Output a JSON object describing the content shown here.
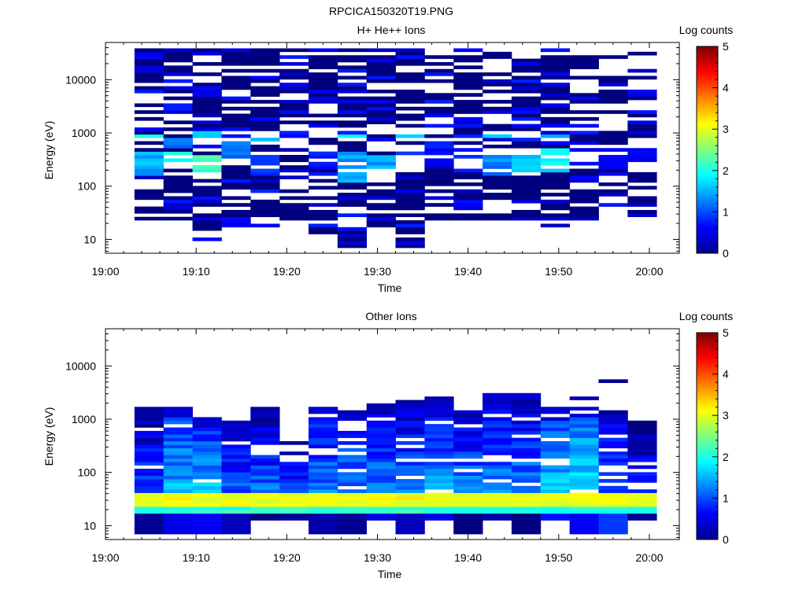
{
  "figure_title": "RPCICA150320T19.PNG",
  "chart_data": [
    {
      "type": "heatmap",
      "title": "H+ He++ Ions",
      "xlabel": "Time",
      "ylabel": "Energy (eV)",
      "x_tick_labels": [
        "19:00",
        "19:10",
        "19:20",
        "19:30",
        "19:40",
        "19:50",
        "20:00"
      ],
      "x_ticks_minutes": [
        0,
        10,
        20,
        30,
        40,
        50,
        60
      ],
      "xlim_minutes": [
        0,
        63.3
      ],
      "y_scale": "log",
      "ylim": [
        5.5,
        50000
      ],
      "y_tick_labels": [
        "10",
        "100",
        "1000",
        "10000"
      ],
      "y_ticks": [
        10,
        100,
        1000,
        10000
      ],
      "colorbar": {
        "label": "Log counts",
        "range": [
          0,
          5
        ],
        "tick_labels": [
          "0",
          "1",
          "2",
          "3",
          "4",
          "5"
        ]
      },
      "time_bins_minutes": [
        [
          3.2,
          6.4
        ],
        [
          6.4,
          9.6
        ],
        [
          9.6,
          12.8
        ],
        [
          12.8,
          16.0
        ],
        [
          16.0,
          19.2
        ],
        [
          19.2,
          22.4
        ],
        [
          22.4,
          25.6
        ],
        [
          25.6,
          28.8
        ],
        [
          28.8,
          32.0
        ],
        [
          32.0,
          35.2
        ],
        [
          35.2,
          38.4
        ],
        [
          38.4,
          41.6
        ],
        [
          41.6,
          44.8
        ],
        [
          44.8,
          48.0
        ],
        [
          48.0,
          51.2
        ],
        [
          51.2,
          54.4
        ],
        [
          54.4,
          57.6
        ],
        [
          57.6,
          60.8
        ]
      ],
      "columns": [
        {
          "emin": 22,
          "emax": 40000,
          "fill": 0.72,
          "seed": 1,
          "hot": [
            [
              150,
              450,
              1.7
            ],
            [
              700,
              1000,
              2.6
            ],
            [
              40,
              60,
              0.3
            ]
          ]
        },
        {
          "emin": 22,
          "emax": 40000,
          "fill": 0.7,
          "seed": 2,
          "hot": [
            [
              200,
              450,
              2.3
            ],
            [
              500,
              800,
              1.5
            ]
          ]
        },
        {
          "emin": 10,
          "emax": 40000,
          "fill": 0.7,
          "seed": 3,
          "hot": [
            [
              180,
              400,
              2.7
            ],
            [
              800,
              1100,
              2.2
            ]
          ]
        },
        {
          "emin": 18,
          "emax": 40000,
          "fill": 0.68,
          "seed": 4,
          "hot": [
            [
              300,
              700,
              1.3
            ]
          ]
        },
        {
          "emin": 18,
          "emax": 40000,
          "fill": 0.7,
          "seed": 5,
          "hot": [
            [
              150,
              400,
              1.1
            ],
            [
              700,
              1000,
              1.6
            ]
          ]
        },
        {
          "emin": 22,
          "emax": 40000,
          "fill": 0.65,
          "seed": 6,
          "hot": [
            [
              500,
              900,
              0.8
            ]
          ]
        },
        {
          "emin": 12,
          "emax": 40000,
          "fill": 0.66,
          "seed": 7,
          "hot": [
            [
              200,
              600,
              0.9
            ]
          ]
        },
        {
          "emin": 7,
          "emax": 40000,
          "fill": 0.7,
          "seed": 8,
          "hot": [
            [
              120,
              450,
              1.6
            ],
            [
              700,
              1000,
              1.9
            ]
          ]
        },
        {
          "emin": 18,
          "emax": 40000,
          "fill": 0.7,
          "seed": 9,
          "hot": [
            [
              150,
              400,
              1.8
            ]
          ]
        },
        {
          "emin": 7,
          "emax": 40000,
          "fill": 0.66,
          "seed": 10,
          "hot": [
            [
              200,
              600,
              1.2
            ],
            [
              800,
              1000,
              1.8
            ]
          ]
        },
        {
          "emin": 22,
          "emax": 40000,
          "fill": 0.62,
          "seed": 11,
          "hot": [
            [
              300,
              700,
              0.8
            ]
          ]
        },
        {
          "emin": 22,
          "emax": 40000,
          "fill": 0.62,
          "seed": 12,
          "hot": [
            [
              200,
              500,
              0.9
            ]
          ]
        },
        {
          "emin": 22,
          "emax": 40000,
          "fill": 0.62,
          "seed": 13,
          "hot": [
            [
              150,
              500,
              1.5
            ],
            [
              800,
              1100,
              2.3
            ]
          ]
        },
        {
          "emin": 22,
          "emax": 40000,
          "fill": 0.64,
          "seed": 14,
          "hot": [
            [
              150,
              450,
              1.9
            ],
            [
              800,
              1000,
              2.2
            ]
          ]
        },
        {
          "emin": 18,
          "emax": 40000,
          "fill": 0.66,
          "seed": 15,
          "hot": [
            [
              180,
              500,
              2.2
            ],
            [
              800,
              1000,
              1.9
            ]
          ]
        },
        {
          "emin": 22,
          "emax": 40000,
          "fill": 0.6,
          "seed": 16,
          "hot": [
            [
              200,
              500,
              0.7
            ]
          ]
        },
        {
          "emin": 22,
          "emax": 40000,
          "fill": 0.6,
          "seed": 17,
          "hot": [
            [
              200,
              500,
              0.7
            ]
          ]
        },
        {
          "emin": 22,
          "emax": 40000,
          "fill": 0.62,
          "seed": 18,
          "hot": [
            [
              250,
              500,
              0.7
            ]
          ]
        }
      ]
    },
    {
      "type": "heatmap",
      "title": "Other Ions",
      "xlabel": "Time",
      "ylabel": "Energy (eV)",
      "x_tick_labels": [
        "19:00",
        "19:10",
        "19:20",
        "19:30",
        "19:40",
        "19:50",
        "20:00"
      ],
      "x_ticks_minutes": [
        0,
        10,
        20,
        30,
        40,
        50,
        60
      ],
      "xlim_minutes": [
        0,
        63.3
      ],
      "y_scale": "log",
      "ylim": [
        5.5,
        50000
      ],
      "y_tick_labels": [
        "10",
        "100",
        "1000",
        "10000"
      ],
      "y_ticks": [
        10,
        100,
        1000,
        10000
      ],
      "colorbar": {
        "label": "Log counts",
        "range": [
          0,
          5
        ],
        "tick_labels": [
          "0",
          "1",
          "2",
          "3",
          "4",
          "5"
        ]
      },
      "time_bins_minutes": [
        [
          3.2,
          6.4
        ],
        [
          6.4,
          9.6
        ],
        [
          9.6,
          12.8
        ],
        [
          12.8,
          16.0
        ],
        [
          16.0,
          19.2
        ],
        [
          19.2,
          22.4
        ],
        [
          22.4,
          25.6
        ],
        [
          25.6,
          28.8
        ],
        [
          28.8,
          32.0
        ],
        [
          32.0,
          35.2
        ],
        [
          35.2,
          38.4
        ],
        [
          38.4,
          41.6
        ],
        [
          41.6,
          44.8
        ],
        [
          44.8,
          48.0
        ],
        [
          48.0,
          51.2
        ],
        [
          51.2,
          54.4
        ],
        [
          54.4,
          57.6
        ],
        [
          57.6,
          60.8
        ]
      ],
      "band_levels": [
        [
          24,
          40,
          3.0
        ],
        [
          18,
          24,
          2.0
        ]
      ],
      "columns": [
        {
          "emin": 7,
          "emax": 1800,
          "fill": 0.88,
          "seed": 21,
          "base": 1.1,
          "top_level": 0.6,
          "low": 0.1,
          "band_boost": 0.0
        },
        {
          "emin": 7,
          "emax": 1800,
          "fill": 0.9,
          "seed": 22,
          "base": 1.5,
          "top_level": 1.4,
          "low": 0.5,
          "band_boost": 0.3
        },
        {
          "emin": 7,
          "emax": 1100,
          "fill": 0.9,
          "seed": 23,
          "base": 1.6,
          "top_level": 1.2,
          "low": 0.6,
          "band_boost": 0.3
        },
        {
          "emin": 7,
          "emax": 900,
          "fill": 0.85,
          "seed": 24,
          "base": 1.1,
          "top_level": 0.9,
          "low": 0.3,
          "band_boost": 0.5
        },
        {
          "emin": 12,
          "emax": 1600,
          "fill": 0.8,
          "seed": 25,
          "base": 1.2,
          "top_level": 0.7,
          "low": 0.0,
          "band_boost": 0.3
        },
        {
          "emin": 12,
          "emax": 400,
          "fill": 0.82,
          "seed": 26,
          "base": 1.0,
          "top_level": 0.6,
          "low": 0.1,
          "band_boost": 0.4
        },
        {
          "emin": 7,
          "emax": 1800,
          "fill": 0.86,
          "seed": 27,
          "base": 1.2,
          "top_level": 1.1,
          "low": 0.2,
          "band_boost": 0.2
        },
        {
          "emin": 7,
          "emax": 1500,
          "fill": 0.88,
          "seed": 28,
          "base": 1.3,
          "top_level": 1.0,
          "low": 0.1,
          "band_boost": 0.3
        },
        {
          "emin": 12,
          "emax": 2000,
          "fill": 0.88,
          "seed": 29,
          "base": 1.3,
          "top_level": 0.9,
          "low": 0.5,
          "band_boost": 0.3
        },
        {
          "emin": 7,
          "emax": 2300,
          "fill": 0.86,
          "seed": 30,
          "base": 1.2,
          "top_level": 0.9,
          "low": 0.3,
          "band_boost": 0.4
        },
        {
          "emin": 12,
          "emax": 2600,
          "fill": 0.86,
          "seed": 31,
          "base": 1.4,
          "top_level": 1.0,
          "low": 0.5,
          "band_boost": 0.1
        },
        {
          "emin": 7,
          "emax": 1400,
          "fill": 0.86,
          "seed": 32,
          "base": 1.3,
          "top_level": 0.9,
          "low": 0.0,
          "band_boost": 0.0
        },
        {
          "emin": 12,
          "emax": 2900,
          "fill": 0.86,
          "seed": 33,
          "base": 1.3,
          "top_level": 1.0,
          "low": 0.2,
          "band_boost": 0.1
        },
        {
          "emin": 7,
          "emax": 2900,
          "fill": 0.86,
          "seed": 34,
          "base": 1.4,
          "top_level": 0.8,
          "low": 0.0,
          "band_boost": 0.1
        },
        {
          "emin": 12,
          "emax": 1600,
          "fill": 0.9,
          "seed": 35,
          "base": 1.6,
          "top_level": 1.4,
          "low": 0.7,
          "band_boost": 0.2
        },
        {
          "emin": 7,
          "emax": 1700,
          "fill": 0.9,
          "seed": 36,
          "base": 1.8,
          "top_level": 1.6,
          "low": 0.6,
          "band_boost": 0.2,
          "extra": [
            [
              2300,
              2600,
              0.2
            ]
          ]
        },
        {
          "emin": 7,
          "emax": 1500,
          "fill": 0.8,
          "seed": 37,
          "base": 1.1,
          "top_level": 0.9,
          "low": 0.9,
          "band_boost": 0.2,
          "extra": [
            [
              4800,
              5300,
              0.1
            ]
          ]
        },
        {
          "emin": 12,
          "emax": 1000,
          "fill": 0.8,
          "seed": 38,
          "base": 0.9,
          "top_level": 0.5,
          "low": 0.1,
          "band_boost": 0.0
        }
      ]
    }
  ]
}
